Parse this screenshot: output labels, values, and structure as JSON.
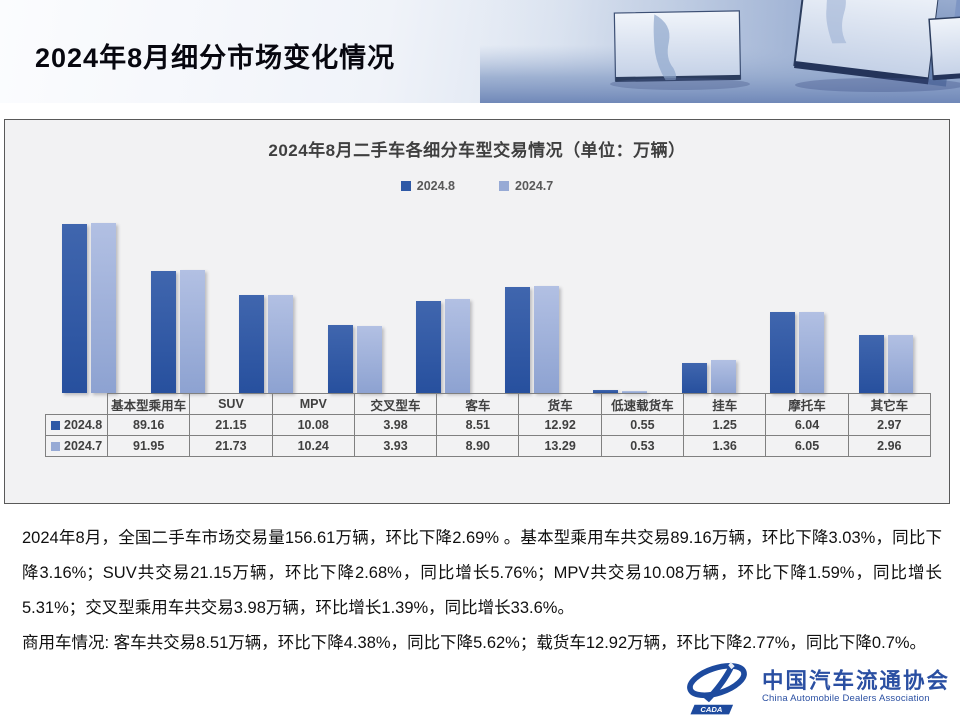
{
  "header": {
    "title": "2024年8月细分市场变化情况"
  },
  "chart_data": {
    "type": "bar",
    "title": "2024年8月二手车各细分车型交易情况（单位：万辆）",
    "categories": [
      "基本型乘用车",
      "SUV",
      "MPV",
      "交叉型车",
      "客车",
      "货车",
      "低速载货车",
      "挂车",
      "摩托车",
      "其它车"
    ],
    "series": [
      {
        "name": "2024.8",
        "color": "#2e59a6",
        "color_top": "#4066ae",
        "color_bottom": "#27509e",
        "values": [
          89.16,
          21.15,
          10.08,
          3.98,
          8.51,
          12.92,
          0.55,
          1.25,
          6.04,
          2.97
        ]
      },
      {
        "name": "2024.7",
        "color": "#97aad5",
        "color_top": "#b2c0e3",
        "color_bottom": "#8da2d1",
        "values": [
          91.95,
          21.73,
          10.24,
          3.93,
          8.9,
          13.29,
          0.53,
          1.36,
          6.05,
          2.96
        ]
      }
    ],
    "scale": "log",
    "scale_min": 0.5,
    "ymax": 91.95,
    "grid": false,
    "legend_position": "top",
    "data_table_shown": true,
    "value_format": "2-decimals"
  },
  "body": {
    "para1": "2024年8月，全国二手车市场交易量156.61万辆，环比下降2.69% 。基本型乘用车共交易89.16万辆，环比下降3.03%，同比下降3.16%；SUV共交易21.15万辆，环比下降2.68%，同比增长5.76%；MPV共交易10.08万辆，环比下降1.59%，同比增长5.31%；交叉型乘用车共交易3.98万辆，环比增长1.39%，同比增长33.6%。",
    "para2": "商用车情况: 客车共交易8.51万辆，环比下降4.38%，同比下降5.62%；载货车12.92万辆，环比下降2.77%，同比下降0.7%。"
  },
  "logo": {
    "cn": "中国汽车流通协会",
    "en": "China Automobile Dealers Association",
    "abbr": "CADA",
    "brand_color": "#1d4a9e"
  },
  "colors": {
    "panel_bg": "#f2f2f3",
    "panel_border": "#595959",
    "table_border": "#808080",
    "banner_floor": "#7e96c4"
  }
}
